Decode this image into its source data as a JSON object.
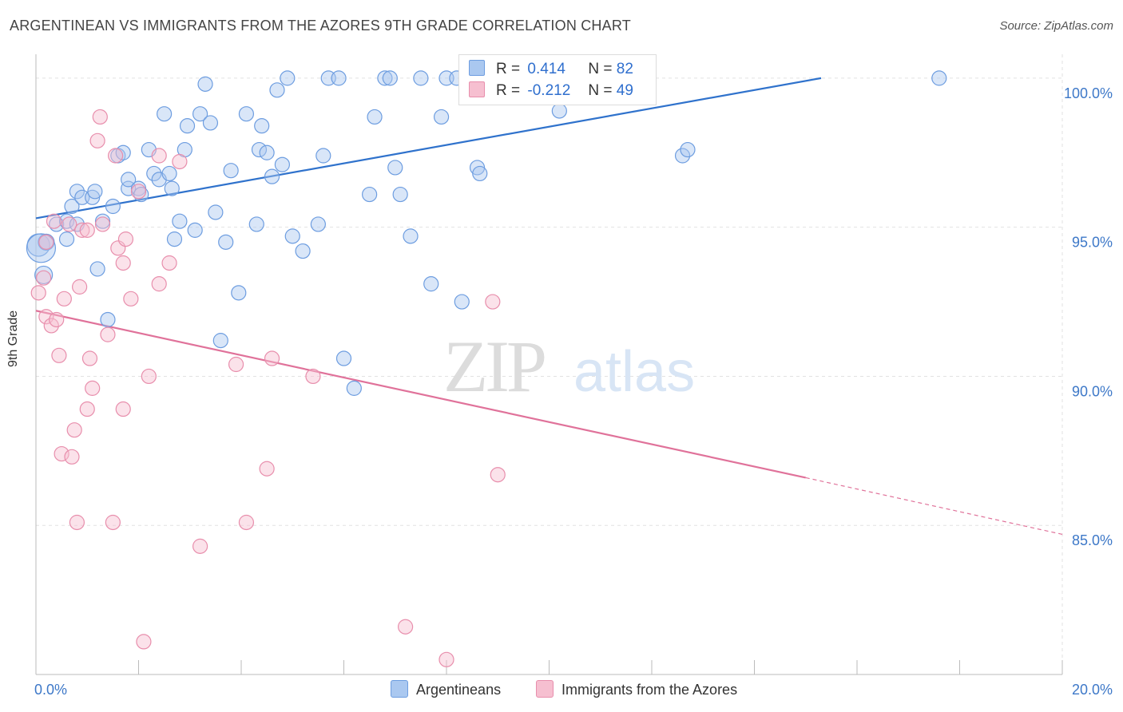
{
  "title": "ARGENTINEAN VS IMMIGRANTS FROM THE AZORES 9TH GRADE CORRELATION CHART",
  "source": "Source: ZipAtlas.com",
  "watermark": {
    "zip": "ZIP",
    "atlas": "atlas"
  },
  "legend": {
    "series1": {
      "r_label": "R =",
      "r_value": "0.414",
      "n_label": "N =",
      "n_value": "82"
    },
    "series2": {
      "r_label": "R =",
      "r_value": "-0.212",
      "n_label": "N =",
      "n_value": "49"
    }
  },
  "bottom_legend": {
    "series1": "Argentineans",
    "series2": "Immigrants from the Azores"
  },
  "colors": {
    "blue_fill": "#aac8f0",
    "blue_stroke": "#6d9de0",
    "blue_line": "#2f72cc",
    "pink_fill": "#f6bfd0",
    "pink_stroke": "#e88eac",
    "pink_line": "#e0729a",
    "axis_text": "#3d78c8",
    "grid": "#e2e2e2"
  },
  "chart_data": {
    "type": "scatter",
    "title": "ARGENTINEAN VS IMMIGRANTS FROM THE AZORES 9TH GRADE CORRELATION CHART",
    "xlabel": "",
    "ylabel": "9th Grade",
    "xlim": [
      0,
      20
    ],
    "ylim": [
      80,
      100.8
    ],
    "x_tick_labels": [
      {
        "value": 0,
        "label": "0.0%"
      },
      {
        "value": 20,
        "label": "20.0%"
      }
    ],
    "y_tick_labels": [
      {
        "value": 100,
        "label": "100.0%"
      },
      {
        "value": 95,
        "label": "95.0%"
      },
      {
        "value": 90,
        "label": "90.0%"
      },
      {
        "value": 85,
        "label": "85.0%"
      }
    ],
    "x_minor_ticks": [
      0,
      2,
      4,
      6,
      8,
      10,
      12,
      14,
      16,
      18,
      20
    ],
    "grid": true,
    "series": [
      {
        "name": "Argentineans",
        "color": "#aac8f0",
        "trend": {
          "x": [
            0,
            15.3
          ],
          "y": [
            95.3,
            100
          ]
        },
        "points": [
          [
            0.05,
            94.4
          ],
          [
            0.15,
            93.4
          ],
          [
            0.2,
            94.5
          ],
          [
            0.4,
            95.1
          ],
          [
            0.6,
            95.2
          ],
          [
            0.6,
            94.6
          ],
          [
            0.7,
            95.7
          ],
          [
            0.8,
            96.2
          ],
          [
            0.9,
            96.0
          ],
          [
            1.1,
            96.0
          ],
          [
            1.15,
            96.2
          ],
          [
            1.3,
            95.2
          ],
          [
            1.5,
            95.7
          ],
          [
            1.2,
            93.6
          ],
          [
            1.4,
            91.9
          ],
          [
            1.6,
            97.4
          ],
          [
            1.7,
            97.5
          ],
          [
            1.8,
            96.3
          ],
          [
            1.8,
            96.6
          ],
          [
            2.0,
            96.3
          ],
          [
            2.05,
            96.1
          ],
          [
            2.2,
            97.6
          ],
          [
            2.3,
            96.8
          ],
          [
            2.4,
            96.6
          ],
          [
            2.5,
            98.8
          ],
          [
            2.6,
            96.8
          ],
          [
            2.65,
            96.3
          ],
          [
            2.8,
            95.2
          ],
          [
            2.9,
            97.6
          ],
          [
            2.95,
            98.4
          ],
          [
            3.1,
            94.9
          ],
          [
            3.2,
            98.8
          ],
          [
            3.4,
            98.5
          ],
          [
            3.5,
            95.5
          ],
          [
            3.7,
            94.5
          ],
          [
            3.8,
            96.9
          ],
          [
            3.95,
            92.8
          ],
          [
            4.1,
            98.8
          ],
          [
            4.3,
            95.1
          ],
          [
            4.35,
            97.6
          ],
          [
            4.4,
            98.4
          ],
          [
            4.5,
            97.5
          ],
          [
            4.6,
            96.7
          ],
          [
            4.7,
            99.6
          ],
          [
            4.8,
            97.1
          ],
          [
            4.9,
            100.0
          ],
          [
            3.3,
            99.8
          ],
          [
            5.0,
            94.7
          ],
          [
            5.2,
            94.2
          ],
          [
            5.5,
            95.1
          ],
          [
            5.6,
            97.4
          ],
          [
            5.7,
            100.0
          ],
          [
            5.9,
            100.0
          ],
          [
            6.0,
            90.6
          ],
          [
            6.2,
            89.6
          ],
          [
            6.5,
            96.1
          ],
          [
            6.6,
            98.7
          ],
          [
            6.8,
            100.0
          ],
          [
            6.9,
            100.0
          ],
          [
            7.0,
            97.0
          ],
          [
            7.1,
            96.1
          ],
          [
            7.3,
            94.7
          ],
          [
            7.5,
            100.0
          ],
          [
            7.7,
            93.1
          ],
          [
            7.9,
            98.7
          ],
          [
            8.0,
            100.0
          ],
          [
            8.2,
            100.0
          ],
          [
            8.3,
            92.5
          ],
          [
            8.6,
            97.0
          ],
          [
            8.65,
            96.8
          ],
          [
            8.9,
            100.0
          ],
          [
            9.3,
            100.0
          ],
          [
            9.6,
            100.0
          ],
          [
            10.0,
            100.0
          ],
          [
            10.2,
            98.9
          ],
          [
            12.6,
            97.4
          ],
          [
            12.7,
            97.6
          ],
          [
            17.6,
            100.0
          ],
          [
            2.7,
            94.6
          ],
          [
            3.6,
            91.2
          ],
          [
            0.1,
            94.3
          ],
          [
            0.8,
            95.1
          ]
        ]
      },
      {
        "name": "Immigrants from the Azores",
        "color": "#f6bfd0",
        "trend": {
          "x": [
            0,
            15
          ],
          "y": [
            92.2,
            86.6
          ]
        },
        "trend_dashed": {
          "x": [
            15,
            20
          ],
          "y": [
            86.6,
            84.7
          ]
        },
        "points": [
          [
            0.05,
            92.8
          ],
          [
            0.15,
            93.3
          ],
          [
            0.2,
            94.5
          ],
          [
            0.2,
            92.0
          ],
          [
            0.3,
            91.7
          ],
          [
            0.35,
            95.2
          ],
          [
            0.4,
            91.9
          ],
          [
            0.45,
            90.7
          ],
          [
            0.5,
            87.4
          ],
          [
            0.55,
            92.6
          ],
          [
            0.65,
            95.1
          ],
          [
            0.7,
            87.3
          ],
          [
            0.75,
            88.2
          ],
          [
            0.8,
            85.1
          ],
          [
            0.85,
            93.0
          ],
          [
            0.9,
            94.9
          ],
          [
            1.0,
            88.9
          ],
          [
            1.05,
            90.6
          ],
          [
            1.1,
            89.6
          ],
          [
            1.2,
            97.9
          ],
          [
            1.25,
            98.7
          ],
          [
            1.3,
            95.1
          ],
          [
            1.4,
            91.4
          ],
          [
            1.5,
            85.1
          ],
          [
            1.55,
            97.4
          ],
          [
            1.6,
            94.3
          ],
          [
            1.7,
            93.8
          ],
          [
            1.75,
            94.6
          ],
          [
            1.7,
            88.9
          ],
          [
            1.85,
            92.6
          ],
          [
            2.1,
            81.1
          ],
          [
            2.2,
            90.0
          ],
          [
            2.4,
            97.4
          ],
          [
            2.4,
            93.1
          ],
          [
            2.6,
            93.8
          ],
          [
            2.8,
            97.2
          ],
          [
            3.2,
            84.3
          ],
          [
            3.9,
            90.4
          ],
          [
            4.1,
            85.1
          ],
          [
            4.5,
            86.9
          ],
          [
            4.6,
            90.6
          ],
          [
            5.4,
            90.0
          ],
          [
            7.2,
            81.6
          ],
          [
            8.0,
            80.5
          ],
          [
            8.9,
            92.5
          ],
          [
            9.0,
            86.7
          ],
          [
            11.2,
            100.0
          ],
          [
            2.0,
            96.2
          ],
          [
            1.0,
            94.9
          ]
        ]
      }
    ]
  }
}
